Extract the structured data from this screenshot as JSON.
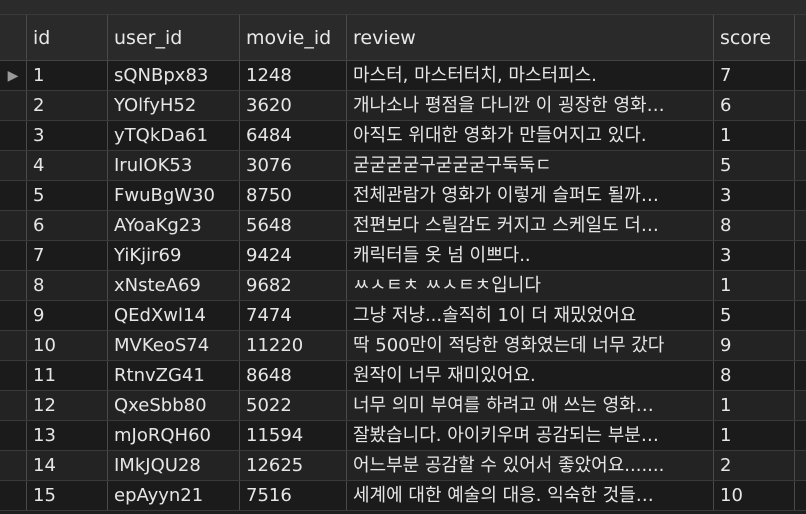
{
  "columns": {
    "id": "id",
    "user_id": "user_id",
    "movie_id": "movie_id",
    "review": "review",
    "score": "score"
  },
  "current_row_icon": "row-pointer-icon",
  "rows": [
    {
      "id": "1",
      "user_id": "sQNBpx83",
      "movie_id": "1248",
      "review": "마스터, 마스터터치, 마스터피스.",
      "score": "7"
    },
    {
      "id": "2",
      "user_id": "YOlfyH52",
      "movie_id": "3620",
      "review": "개나소나 평점을 다니깐 이 굉장한 영화…",
      "score": "6"
    },
    {
      "id": "3",
      "user_id": "yTQkDa61",
      "movie_id": "6484",
      "review": "아직도 위대한 영화가 만들어지고 있다.",
      "score": "1"
    },
    {
      "id": "4",
      "user_id": "IruIOK53",
      "movie_id": "3076",
      "review": "굳굳굳굳구굳굳굳구둑둑ㄷ",
      "score": "5"
    },
    {
      "id": "5",
      "user_id": "FwuBgW30",
      "movie_id": "8750",
      "review": "전체관람가 영화가 이렇게 슬퍼도 될까…",
      "score": "3"
    },
    {
      "id": "6",
      "user_id": "AYoaKg23",
      "movie_id": "5648",
      "review": "전편보다 스릴감도 커지고 스케일도 더…",
      "score": "8"
    },
    {
      "id": "7",
      "user_id": "YiKjir69",
      "movie_id": "9424",
      "review": "캐릭터들 옷 넘 이쁘다..",
      "score": "3"
    },
    {
      "id": "8",
      "user_id": "xNsteA69",
      "movie_id": "9682",
      "review": "ㅆㅅㅌㅊ ㅆㅅㅌㅊ입니다",
      "score": "1"
    },
    {
      "id": "9",
      "user_id": "QEdXwl14",
      "movie_id": "7474",
      "review": "그냥 저냥...솔직히 1이 더 재밌었어요",
      "score": "5"
    },
    {
      "id": "10",
      "user_id": "MVKeoS74",
      "movie_id": "11220",
      "review": "딱 500만이 적당한 영화였는데 너무 갔다",
      "score": "9"
    },
    {
      "id": "11",
      "user_id": "RtnvZG41",
      "movie_id": "8648",
      "review": "원작이 너무 재미있어요.",
      "score": "8"
    },
    {
      "id": "12",
      "user_id": "QxeSbb80",
      "movie_id": "5022",
      "review": "너무 의미 부여를 하려고 애 쓰는 영화…",
      "score": "1"
    },
    {
      "id": "13",
      "user_id": "mJoRQH60",
      "movie_id": "11594",
      "review": "잘봤습니다. 아이키우며 공감되는 부분…",
      "score": "1"
    },
    {
      "id": "14",
      "user_id": "IMkJQU28",
      "movie_id": "12625",
      "review": "어느부분 공감할 수 있어서 좋았어요.......",
      "score": "2"
    },
    {
      "id": "15",
      "user_id": "epAyyn21",
      "movie_id": "7516",
      "review": "세계에 대한 예술의 대응. 익숙한 것들…",
      "score": "10"
    }
  ]
}
